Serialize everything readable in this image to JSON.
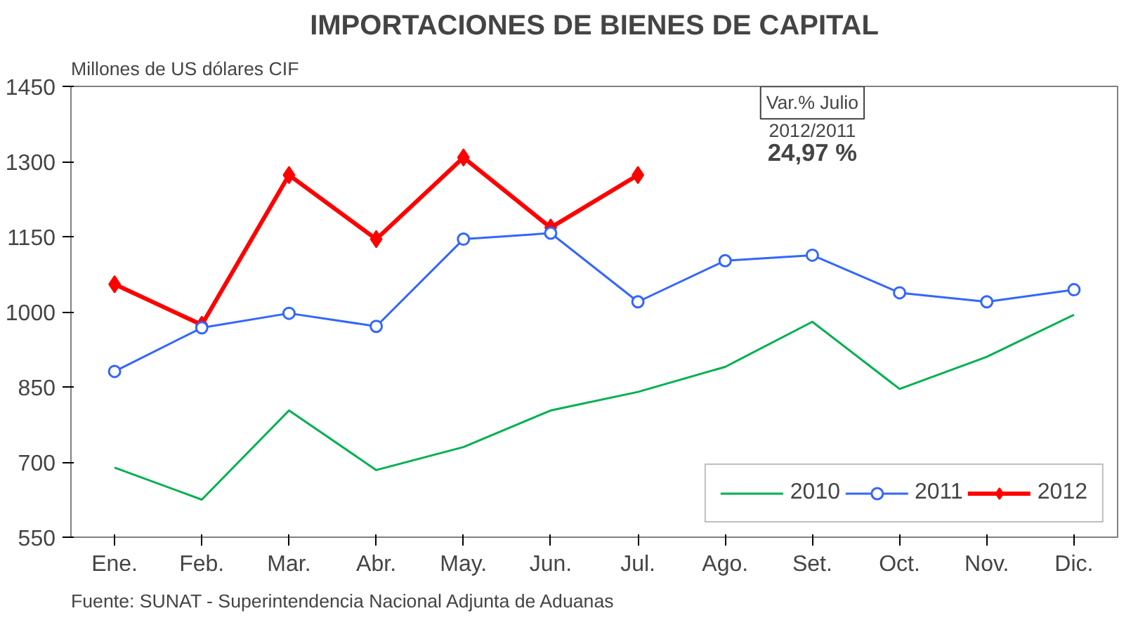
{
  "chart_data": {
    "type": "line",
    "title": "IMPORTACIONES DE BIENES DE CAPITAL",
    "ylabel": "Millones de US dólares CIF",
    "categories": [
      "Ene.",
      "Feb.",
      "Mar.",
      "Abr.",
      "May.",
      "Jun.",
      "Jul.",
      "Ago.",
      "Set.",
      "Oct.",
      "Nov.",
      "Dic."
    ],
    "series": [
      {
        "name": "2010",
        "color": "#00b050",
        "marker": "none",
        "values": [
          689,
          625,
          803,
          684,
          730,
          803,
          840,
          890,
          980,
          846,
          910,
          994
        ]
      },
      {
        "name": "2011",
        "color": "#3366ff",
        "marker": "circle",
        "values": [
          881,
          968,
          997,
          971,
          1145,
          1157,
          1020,
          1102,
          1113,
          1038,
          1020,
          1044
        ]
      },
      {
        "name": "2012",
        "color": "#ff0000",
        "marker": "diamond",
        "values": [
          1055,
          974,
          1273,
          1145,
          1308,
          1168,
          1273,
          null,
          null,
          null,
          null,
          null
        ]
      }
    ],
    "ylim": [
      550,
      1450
    ],
    "yticks": [
      550,
      700,
      850,
      1000,
      1150,
      1300,
      1450
    ],
    "grid": false,
    "legend": "bottom right",
    "line_style": "solid",
    "annotations": [
      "Var.% Julio",
      "2012/2011",
      "24,97 %",
      "Fuente: SUNAT - Superintendencia Nacional Adjunta de Aduanas"
    ]
  }
}
